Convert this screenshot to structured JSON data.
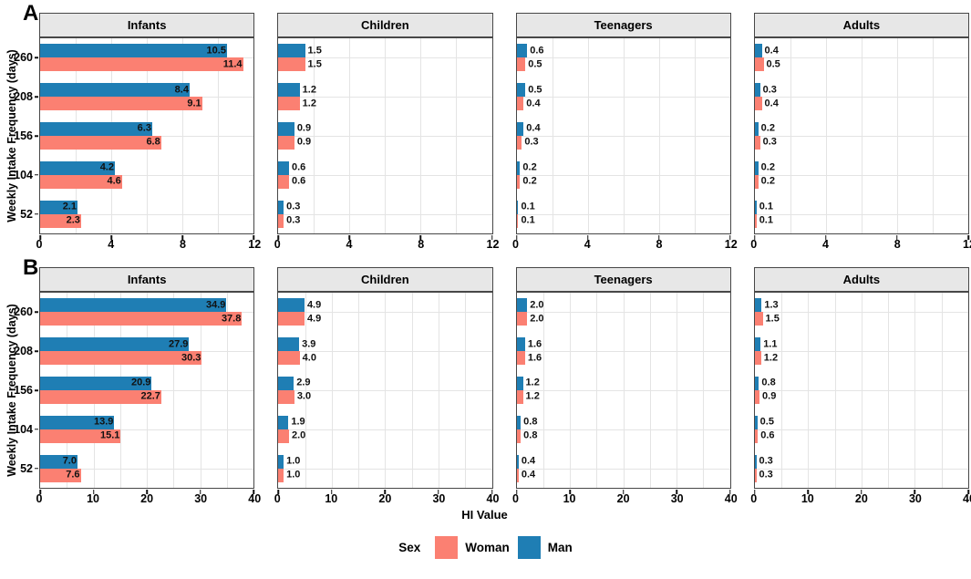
{
  "figure": {
    "x_axis_title": "HI Value",
    "y_axis_title": "Weekly Intake Frequency (days)",
    "panel_labels": [
      "A",
      "B"
    ],
    "legend": {
      "title": "Sex",
      "items": [
        {
          "label": "Woman",
          "color": "#FB8072"
        },
        {
          "label": "Man",
          "color": "#1F7EB4"
        }
      ]
    }
  },
  "chart_data": {
    "type": "bar",
    "orientation": "horizontal",
    "xlabel": "HI Value",
    "ylabel": "Weekly Intake Frequency (days)",
    "y_categories": [
      "260",
      "208",
      "156",
      "104",
      "52"
    ],
    "series_names": [
      "Man",
      "Woman"
    ],
    "colors": {
      "Man": "#1F7EB4",
      "Woman": "#FB8072"
    },
    "grid": true,
    "legend_position": "bottom",
    "panels": [
      {
        "label": "A",
        "xlim": [
          0,
          12
        ],
        "xticks": [
          0,
          4,
          8,
          12
        ],
        "minor_step": 2,
        "show_x_title": false,
        "facets": [
          {
            "title": "Infants",
            "labels_inside": true,
            "series": {
              "Man": [
                10.5,
                8.4,
                6.3,
                4.2,
                2.1
              ],
              "Woman": [
                11.4,
                9.1,
                6.8,
                4.6,
                2.3
              ]
            }
          },
          {
            "title": "Children",
            "labels_inside": false,
            "series": {
              "Man": [
                1.5,
                1.2,
                0.9,
                0.6,
                0.3
              ],
              "Woman": [
                1.5,
                1.2,
                0.9,
                0.6,
                0.3
              ]
            }
          },
          {
            "title": "Teenagers",
            "labels_inside": false,
            "series": {
              "Man": [
                0.6,
                0.5,
                0.4,
                0.2,
                0.1
              ],
              "Woman": [
                0.5,
                0.4,
                0.3,
                0.2,
                0.1
              ]
            }
          },
          {
            "title": "Adults",
            "labels_inside": false,
            "series": {
              "Man": [
                0.4,
                0.3,
                0.2,
                0.2,
                0.1
              ],
              "Woman": [
                0.5,
                0.4,
                0.3,
                0.2,
                0.1
              ]
            }
          }
        ]
      },
      {
        "label": "B",
        "xlim": [
          0,
          40
        ],
        "xticks": [
          0,
          10,
          20,
          30,
          40
        ],
        "minor_step": 5,
        "show_x_title": true,
        "facets": [
          {
            "title": "Infants",
            "labels_inside": true,
            "series": {
              "Man": [
                34.9,
                27.9,
                20.9,
                13.9,
                7.0
              ],
              "Woman": [
                37.8,
                30.3,
                22.7,
                15.1,
                7.6
              ]
            }
          },
          {
            "title": "Children",
            "labels_inside": false,
            "series": {
              "Man": [
                4.9,
                3.9,
                2.9,
                1.9,
                1.0
              ],
              "Woman": [
                4.9,
                4.0,
                3.0,
                2.0,
                1.0
              ]
            }
          },
          {
            "title": "Teenagers",
            "labels_inside": false,
            "series": {
              "Man": [
                2.0,
                1.6,
                1.2,
                0.8,
                0.4
              ],
              "Woman": [
                2.0,
                1.6,
                1.2,
                0.8,
                0.4
              ]
            }
          },
          {
            "title": "Adults",
            "labels_inside": false,
            "series": {
              "Man": [
                1.3,
                1.1,
                0.8,
                0.5,
                0.3
              ],
              "Woman": [
                1.5,
                1.2,
                0.9,
                0.6,
                0.3
              ]
            }
          }
        ]
      }
    ]
  }
}
